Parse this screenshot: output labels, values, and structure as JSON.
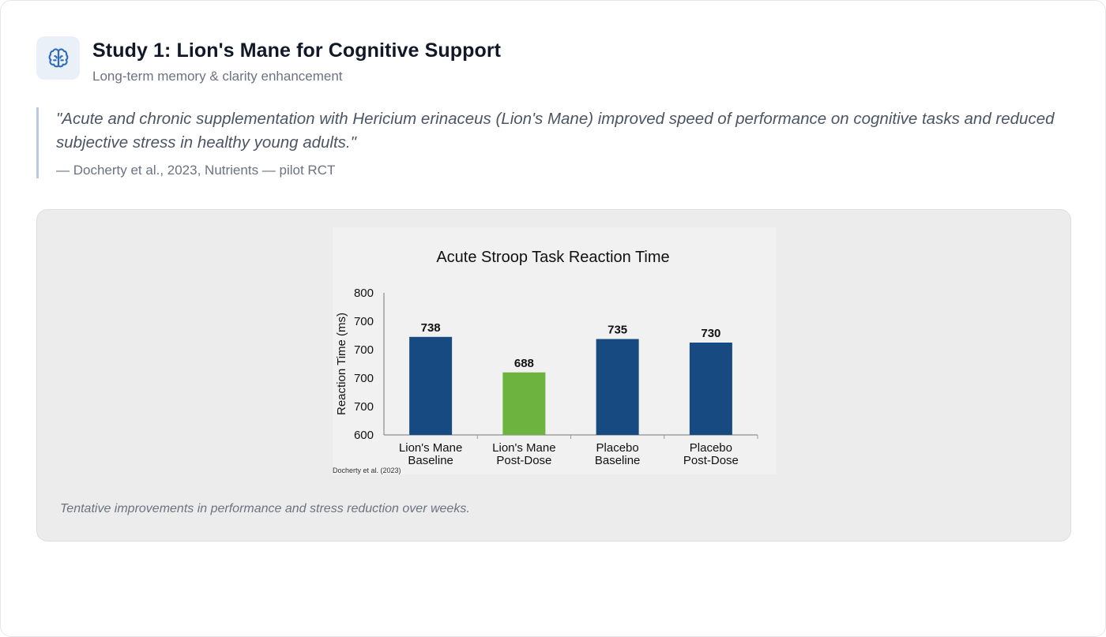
{
  "header": {
    "icon": "brain-icon",
    "title": "Study 1: Lion's Mane for Cognitive Support",
    "subtitle": "Long-term memory & clarity enhancement"
  },
  "quote": {
    "text": "\"Acute and chronic supplementation with Hericium erinaceus (Lion's Mane) improved speed of performance on cognitive tasks and reduced subjective stress in healthy young adults.\"",
    "citation": "— Docherty et al., 2023, Nutrients — pilot RCT"
  },
  "figure": {
    "caption": "Tentative improvements in performance and stress reduction over weeks.",
    "source_note": "Docherty et al. (2023)"
  },
  "colors": {
    "accent_icon": "#2f6db5",
    "bar_blue": "#174a80",
    "bar_green": "#6db33f"
  },
  "chart_data": {
    "type": "bar",
    "title": "Acute Stroop Task Reaction Time",
    "xlabel": "",
    "ylabel": "Reaction Time (ms)",
    "ylim": [
      600,
      800
    ],
    "y_tick_labels": [
      "800",
      "700",
      "700",
      "700",
      "700",
      "600"
    ],
    "categories": [
      [
        "Lion's Mane",
        "Baseline"
      ],
      [
        "Lion's Mane",
        "Post-Dose"
      ],
      [
        "Placebo",
        "Baseline"
      ],
      [
        "Placebo",
        "Post-Dose"
      ]
    ],
    "values": [
      738,
      688,
      735,
      730
    ],
    "bar_colors": [
      "#174a80",
      "#6db33f",
      "#174a80",
      "#174a80"
    ],
    "grid": false,
    "legend": "none"
  }
}
